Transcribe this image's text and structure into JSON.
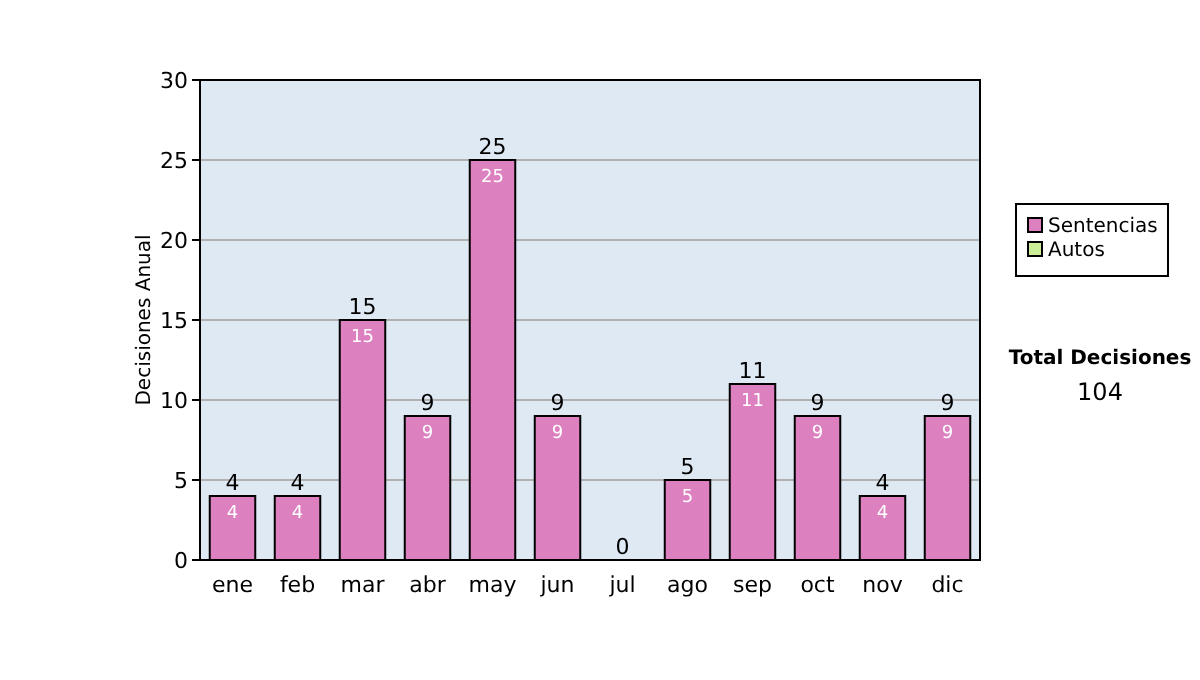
{
  "chart_data": {
    "type": "bar",
    "stacked": true,
    "ylabel": "Decisiones Anual",
    "categories": [
      "ene",
      "feb",
      "mar",
      "abr",
      "may",
      "jun",
      "jul",
      "ago",
      "sep",
      "oct",
      "nov",
      "dic"
    ],
    "series": [
      {
        "name": "Sentencias",
        "color": "#dd80c0",
        "values": [
          4,
          4,
          15,
          9,
          25,
          9,
          0,
          5,
          11,
          9,
          4,
          9
        ],
        "value_labels": [
          "4",
          "4",
          "15",
          "9",
          "25",
          "9",
          null,
          "5",
          "11",
          "9",
          "4",
          "9"
        ]
      },
      {
        "name": "Autos",
        "color": "#ccee99",
        "values": [
          0,
          0,
          0,
          0,
          0,
          0,
          0,
          0,
          0,
          0,
          0,
          0
        ]
      }
    ],
    "totals": [
      "4",
      "4",
      "15",
      "9",
      "25",
      "9",
      "0",
      "5",
      "11",
      "9",
      "4",
      "9"
    ],
    "ylim": [
      0,
      30
    ],
    "yticks": [
      0,
      5,
      10,
      15,
      20,
      25,
      30
    ],
    "grid": "y",
    "legend": "right",
    "annotations": [
      "Total Decisiones",
      "104"
    ]
  }
}
